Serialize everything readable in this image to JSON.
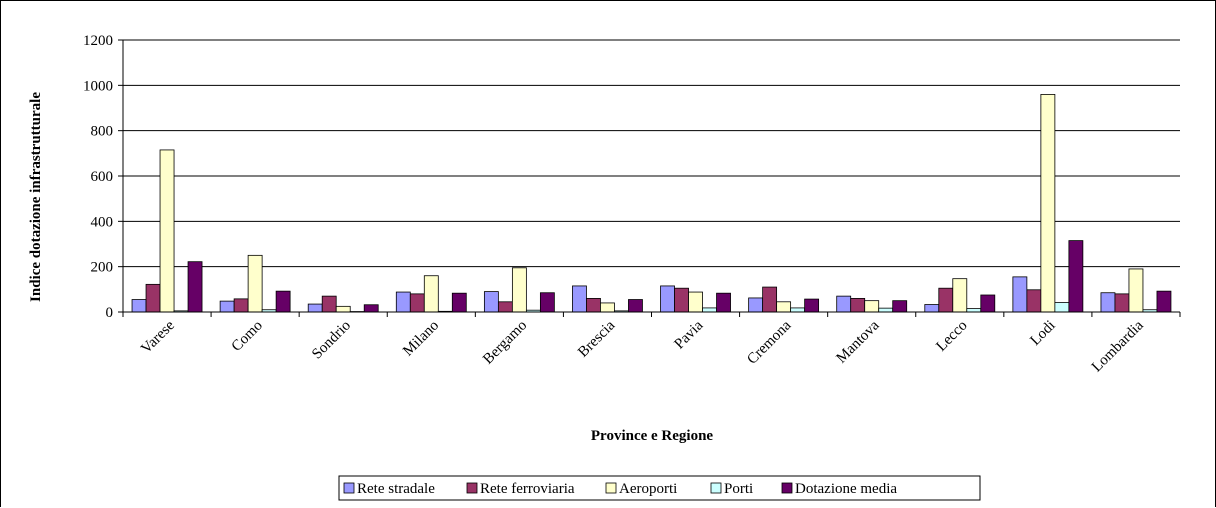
{
  "chart_data": {
    "type": "bar",
    "xlabel": "Province e Regione",
    "ylabel": "Indice dotazione infrastrutturale",
    "ylim": [
      0,
      1200
    ],
    "yticks": [
      0,
      200,
      400,
      600,
      800,
      1000,
      1200
    ],
    "grid": true,
    "legend_position": "bottom",
    "categories": [
      "Varese",
      "Como",
      "Sondrio",
      "Milano",
      "Bergamo",
      "Brescia",
      "Pavia",
      "Cremona",
      "Mantova",
      "Lecco",
      "Lodi",
      "Lombardia"
    ],
    "series": [
      {
        "name": "Rete stradale",
        "color": "#9999ff",
        "values": [
          55,
          48,
          35,
          88,
          90,
          115,
          115,
          62,
          70,
          33,
          155,
          85
        ]
      },
      {
        "name": "Rete ferroviaria",
        "color": "#993366",
        "values": [
          122,
          58,
          70,
          80,
          45,
          60,
          105,
          110,
          60,
          105,
          98,
          80
        ]
      },
      {
        "name": "Aeroporti",
        "color": "#ffffcc",
        "values": [
          715,
          250,
          25,
          160,
          195,
          40,
          88,
          45,
          50,
          147,
          960,
          190
        ]
      },
      {
        "name": "Porti",
        "color": "#ccffff",
        "values": [
          5,
          10,
          2,
          3,
          8,
          5,
          18,
          18,
          17,
          15,
          42,
          10
        ]
      },
      {
        "name": "Dotazione media",
        "color": "#660066",
        "values": [
          222,
          92,
          32,
          83,
          85,
          55,
          83,
          57,
          50,
          75,
          315,
          92
        ]
      }
    ]
  }
}
